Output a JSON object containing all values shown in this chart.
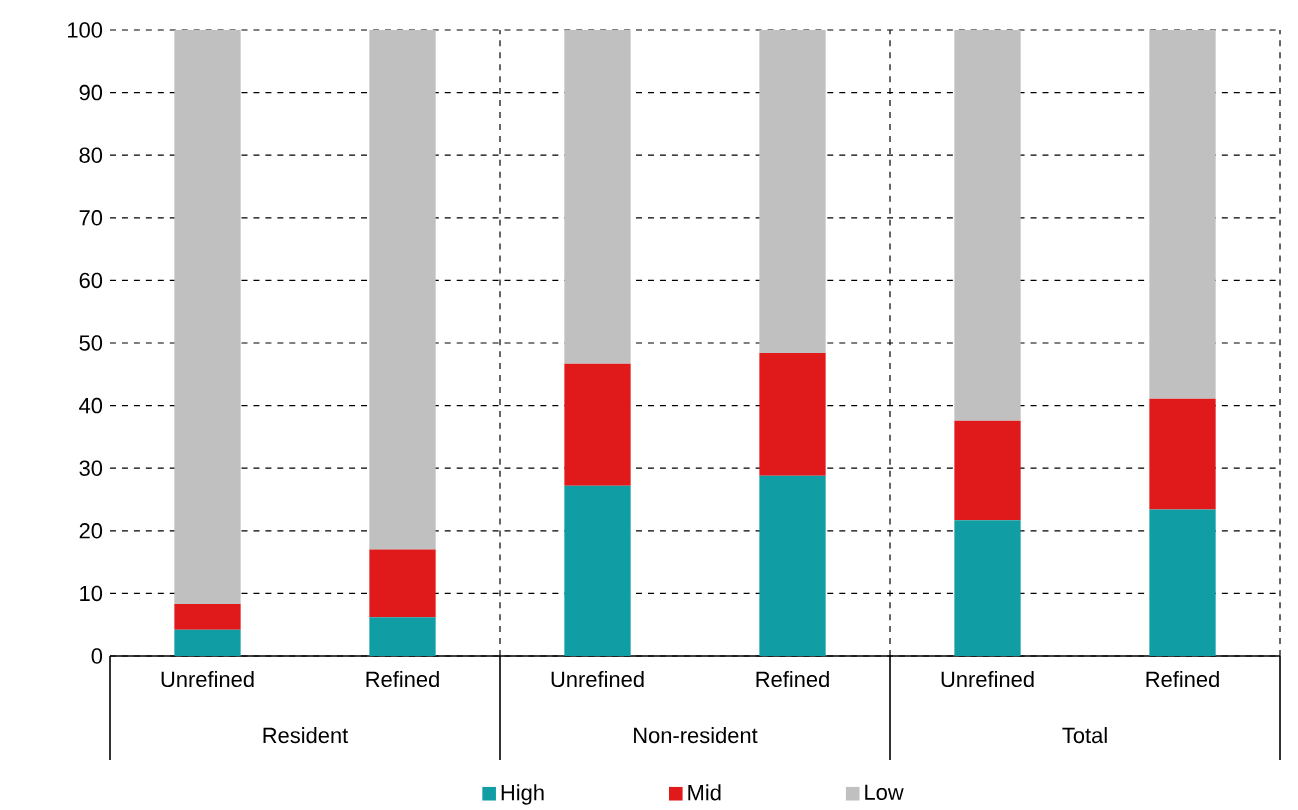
{
  "chart_data": {
    "type": "bar",
    "stacked": true,
    "categories": [
      "Unrefined",
      "Refined",
      "Unrefined",
      "Refined",
      "Unrefined",
      "Refined"
    ],
    "series": [
      {
        "name": "High",
        "color": "#109ea4",
        "values": [
          4.2,
          6.2,
          27.2,
          28.8,
          21.7,
          23.4
        ]
      },
      {
        "name": "Mid",
        "color": "#e01a1a",
        "values": [
          4.1,
          10.8,
          19.5,
          19.6,
          15.9,
          17.7
        ]
      },
      {
        "name": "Low",
        "color": "#c0c0c0",
        "values": [
          91.7,
          83.0,
          53.3,
          51.6,
          62.4,
          58.9
        ]
      }
    ],
    "annotations": [
      "Resident",
      "Non-resident",
      "Total"
    ],
    "ylim": [
      0,
      100
    ],
    "yticks": [
      0,
      10,
      20,
      30,
      40,
      50,
      60,
      70,
      80,
      90,
      100
    ],
    "grid": "y",
    "legend": "bottom"
  }
}
